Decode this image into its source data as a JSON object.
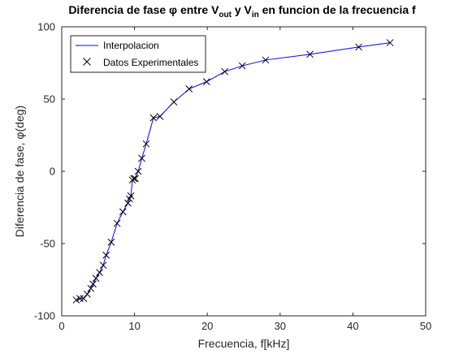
{
  "chart_data": {
    "type": "line",
    "title": {
      "prefix": "Diferencia de fase φ entre V",
      "sub1": "out",
      "middle": " y V",
      "sub2": "in",
      "suffix": " en funcion de la frecuencia f"
    },
    "xlabel": "Frecuencia, f[kHz]",
    "ylabel": "Diferencia de fase, φ(deg)",
    "xlim": [
      0,
      50
    ],
    "ylim": [
      -100,
      100
    ],
    "xticks": [
      "0",
      "10",
      "20",
      "30",
      "40",
      "50"
    ],
    "yticks": [
      "-100",
      "-50",
      "0",
      "50",
      "100"
    ],
    "legend_position": "top-left",
    "grid": false,
    "colors": {
      "line": "#0000ff",
      "marker": "#000000",
      "axes": "#262626"
    },
    "series": [
      {
        "name": "Interpolacion",
        "kind": "line",
        "x": [
          2.0,
          2.5,
          3.0,
          3.5,
          4.0,
          4.3,
          4.7,
          5.2,
          5.7,
          6.1,
          6.8,
          7.6,
          8.4,
          9.1,
          9.3,
          9.5,
          9.7,
          9.9,
          10.1,
          10.5,
          11.0,
          11.6,
          12.6,
          13.5,
          15.4,
          17.5,
          19.9,
          22.4,
          24.8,
          28.0,
          34.1,
          40.8,
          45.1
        ],
        "y": [
          -89,
          -88,
          -88,
          -85,
          -81,
          -78,
          -74,
          -70,
          -65,
          -58,
          -49,
          -36,
          -28,
          -22,
          -19,
          -17,
          -6,
          -5,
          -5,
          0,
          9,
          19,
          37,
          38,
          48,
          57,
          62,
          69,
          73,
          77,
          81,
          86,
          89
        ]
      },
      {
        "name": "Datos Experimentales",
        "kind": "marker",
        "x": [
          2.0,
          2.5,
          3.0,
          3.5,
          4.0,
          4.3,
          4.7,
          5.2,
          5.7,
          6.1,
          6.8,
          7.6,
          8.4,
          9.1,
          9.3,
          9.5,
          9.7,
          9.9,
          10.1,
          10.5,
          11.0,
          11.6,
          12.6,
          13.5,
          15.4,
          17.5,
          19.9,
          22.4,
          24.8,
          28.0,
          34.1,
          40.8,
          45.1
        ],
        "y": [
          -89,
          -88,
          -88,
          -85,
          -81,
          -78,
          -74,
          -70,
          -65,
          -58,
          -49,
          -36,
          -28,
          -22,
          -19,
          -17,
          -6,
          -5,
          -5,
          0,
          9,
          19,
          37,
          38,
          48,
          57,
          62,
          69,
          73,
          77,
          81,
          86,
          89
        ]
      }
    ]
  }
}
